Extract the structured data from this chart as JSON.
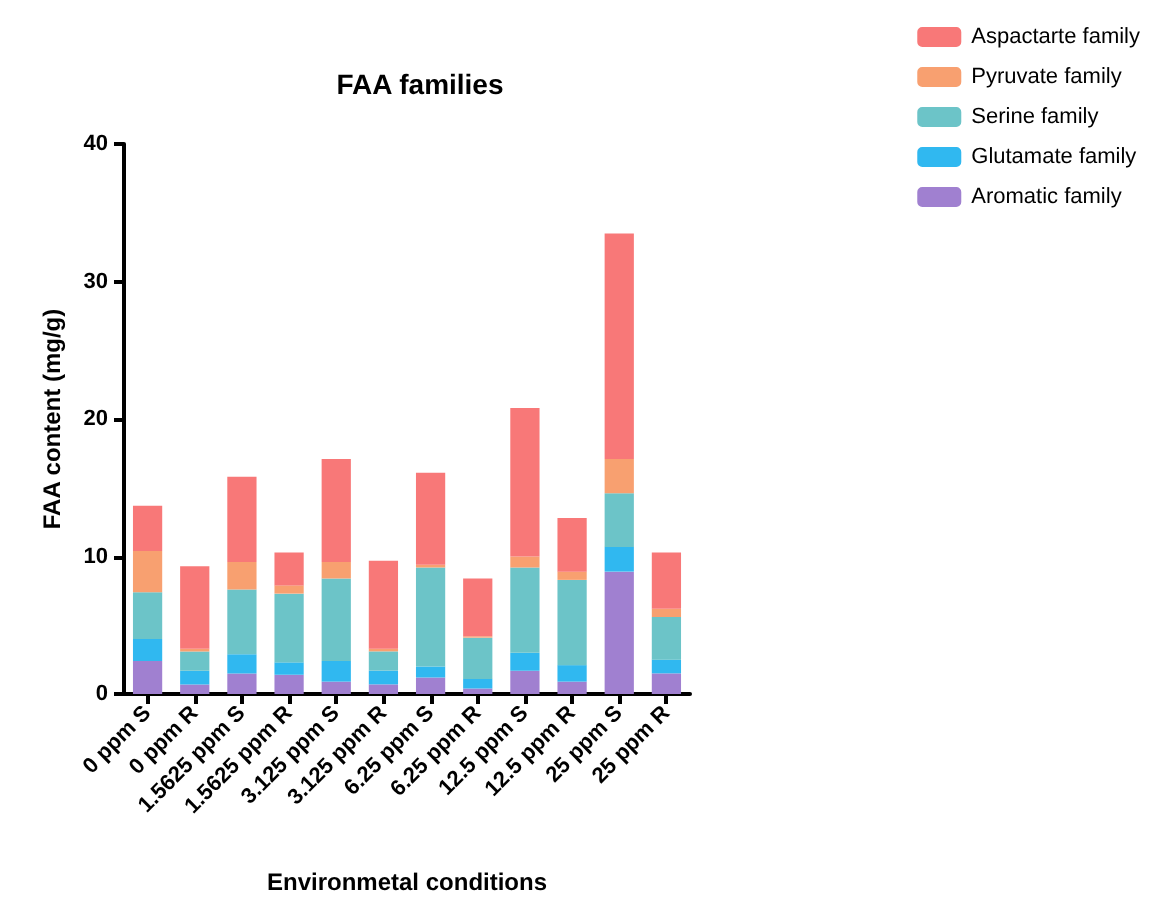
{
  "chart_data": {
    "type": "bar",
    "title": "FAA families",
    "xlabel": "Environmetal conditions",
    "ylabel": "FAA content (mg/g)",
    "categories": [
      "0 ppm S",
      "0 ppm R",
      "1.5625 ppm S",
      "1.5625 ppm R",
      "3.125 ppm S",
      "3.125 ppm R",
      "6.25 ppm S",
      "6.25 ppm R",
      "12.5 ppm S",
      "12.5 ppm R",
      "25 ppm S",
      "25 ppm R"
    ],
    "stacked": true,
    "ylim": [
      0,
      40
    ],
    "yticks": [
      0,
      10,
      20,
      30,
      40
    ],
    "grid": false,
    "legend": "top right",
    "series": [
      {
        "name": "Aromatic family",
        "color": "#a080d0",
        "values": [
          2.4,
          0.7,
          1.5,
          1.4,
          0.9,
          0.7,
          1.2,
          0.4,
          1.7,
          0.9,
          8.9,
          1.5
        ]
      },
      {
        "name": "Glutamate family",
        "color": "#30b8f0",
        "values": [
          1.6,
          1.0,
          1.4,
          0.9,
          1.5,
          1.0,
          0.8,
          0.7,
          1.3,
          1.2,
          1.8,
          1.0
        ]
      },
      {
        "name": "Serine family",
        "color": "#6cc4c8",
        "values": [
          3.4,
          1.4,
          4.7,
          5.0,
          6.0,
          1.4,
          7.2,
          3.0,
          6.2,
          6.2,
          3.9,
          3.1
        ]
      },
      {
        "name": "Pyruvate family",
        "color": "#f8a070",
        "values": [
          3.0,
          0.2,
          2.0,
          0.6,
          1.2,
          0.2,
          0.2,
          0.1,
          0.8,
          0.6,
          2.5,
          0.6
        ]
      },
      {
        "name": "Aspactarte family",
        "color": "#f87878",
        "values": [
          3.3,
          6.0,
          6.2,
          2.4,
          7.5,
          6.4,
          6.7,
          4.2,
          10.8,
          3.9,
          16.4,
          4.1
        ]
      }
    ]
  }
}
